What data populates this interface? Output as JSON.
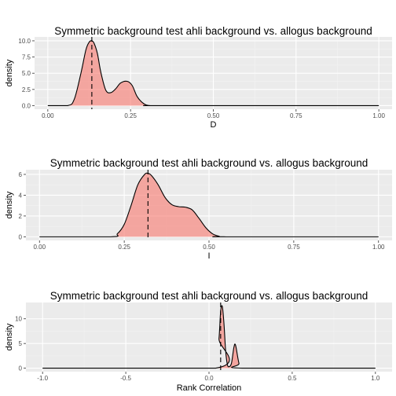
{
  "colors": {
    "panel": "#ebebeb",
    "grid_major": "#ffffff",
    "grid_minor": "#f3f3f3",
    "fill": "#f8766d",
    "line": "#000000"
  },
  "chart_data": [
    {
      "type": "area",
      "title": "Symmetric background test ahli background vs. allogus background",
      "xlabel": "D",
      "ylabel": "density",
      "xlim": [
        -0.04,
        1.04
      ],
      "ylim": [
        -0.55,
        10.6
      ],
      "xticks": [
        0.0,
        0.25,
        0.5,
        0.75,
        1.0
      ],
      "xtick_labels": [
        "0.00",
        "0.25",
        "0.50",
        "0.75",
        "1.00"
      ],
      "yticks": [
        0.0,
        2.5,
        5.0,
        7.5,
        10.0
      ],
      "ytick_labels": [
        "0.0",
        "2.5",
        "5.0",
        "7.5",
        "10.0"
      ],
      "observed_line": 0.133,
      "range": [
        0.0,
        1.0
      ],
      "x": [
        0.0,
        0.06,
        0.08,
        0.1,
        0.115,
        0.125,
        0.133,
        0.14,
        0.15,
        0.16,
        0.175,
        0.19,
        0.205,
        0.22,
        0.24,
        0.255,
        0.27,
        0.29,
        0.31,
        0.35,
        1.0
      ],
      "values": [
        0.0,
        0.0,
        1.0,
        5.0,
        8.6,
        9.8,
        10.0,
        9.6,
        8.0,
        5.2,
        2.4,
        2.0,
        2.6,
        3.5,
        3.75,
        3.1,
        1.4,
        0.3,
        0.0,
        0.0,
        0.0
      ]
    },
    {
      "type": "area",
      "title": "Symmetric background test ahli background vs. allogus background",
      "xlabel": "I",
      "ylabel": "density",
      "xlim": [
        -0.04,
        1.04
      ],
      "ylim": [
        -0.35,
        6.45
      ],
      "xticks": [
        0.0,
        0.25,
        0.5,
        0.75,
        1.0
      ],
      "xtick_labels": [
        "0.00",
        "0.25",
        "0.50",
        "0.75",
        "1.00"
      ],
      "yticks": [
        0,
        2,
        4,
        6
      ],
      "ytick_labels": [
        "0",
        "2",
        "4",
        "6"
      ],
      "observed_line": 0.32,
      "range": [
        0.0,
        1.0
      ],
      "x": [
        0.0,
        0.21,
        0.23,
        0.25,
        0.27,
        0.29,
        0.31,
        0.32,
        0.33,
        0.35,
        0.37,
        0.39,
        0.41,
        0.43,
        0.45,
        0.47,
        0.49,
        0.51,
        0.53,
        0.55,
        1.0
      ],
      "values": [
        0.0,
        0.0,
        0.3,
        1.2,
        3.0,
        5.0,
        6.0,
        6.1,
        5.9,
        5.0,
        3.8,
        3.1,
        2.9,
        2.85,
        2.6,
        1.8,
        0.9,
        0.3,
        0.05,
        0.0,
        0.0
      ]
    },
    {
      "type": "area",
      "title": "Symmetric background test ahli background vs. allogus background",
      "xlabel": "Rank Correlation",
      "ylabel": "density",
      "xlim": [
        -1.1,
        1.1
      ],
      "ylim": [
        -0.7,
        13.3
      ],
      "xticks": [
        -1.0,
        -0.5,
        0.0,
        0.5,
        1.0
      ],
      "xtick_labels": [
        "-1.0",
        "-0.5",
        "0.0",
        "0.5",
        "1.0"
      ],
      "yticks": [
        0,
        5,
        10
      ],
      "ytick_labels": [
        "0",
        "5",
        "10"
      ],
      "observed_line": 0.07,
      "range": [
        -1.0,
        1.0
      ],
      "x": [
        -1.0,
        0.04,
        0.06,
        0.07,
        0.08,
        0.09,
        0.1,
        0.11,
        0.12,
        0.135,
        0.15,
        0.16,
        0.18,
        0.2,
        1.0
      ],
      "values": [
        0.0,
        0.0,
        6.0,
        11.5,
        12.5,
        9.0,
        3.5,
        0.8,
        0.3,
        1.0,
        4.3,
        4.6,
        1.0,
        0.0,
        0.0
      ]
    }
  ]
}
